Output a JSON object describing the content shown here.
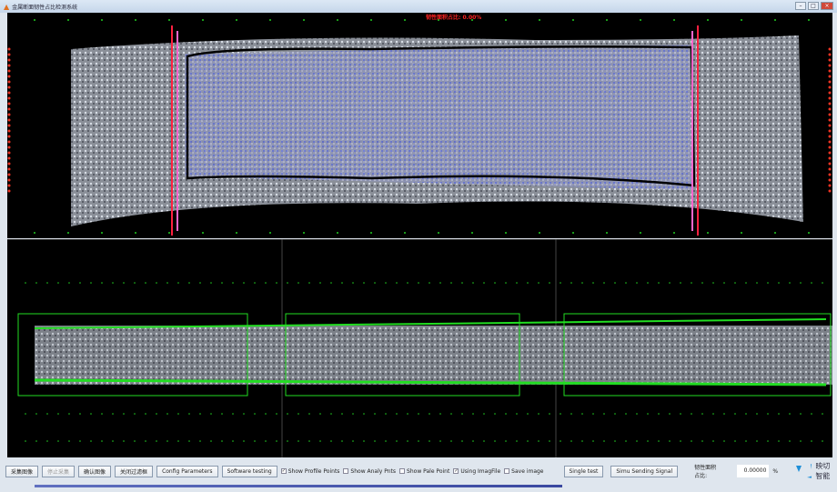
{
  "window": {
    "title": "金属断面韧性占比检测系统",
    "overlay": "韧性面积占比: 0.00%"
  },
  "toolbar": {
    "buttons": [
      "采集图像",
      "停止采集",
      "确认图像",
      "关闭过滤框",
      "Config Parameters",
      "Software testing"
    ],
    "checkboxes": [
      {
        "label": "Show Profile Points",
        "checked": true
      },
      {
        "label": "Show Analy Pnts",
        "checked": false
      },
      {
        "label": "Show Pale Point",
        "checked": false
      },
      {
        "label": "Using ImagFile",
        "checked": true
      },
      {
        "label": "Save image",
        "checked": false
      }
    ],
    "single_test": "Single test",
    "simu": "Simu Sending Signal",
    "ratio_label": "韧性面积占比:",
    "ratio_value": "0.00000",
    "ratio_unit": "%",
    "brand": "映切智能"
  },
  "colors": {
    "profile": "#22dd22",
    "boundary": "#ff3355",
    "tough": "#6677ff"
  }
}
